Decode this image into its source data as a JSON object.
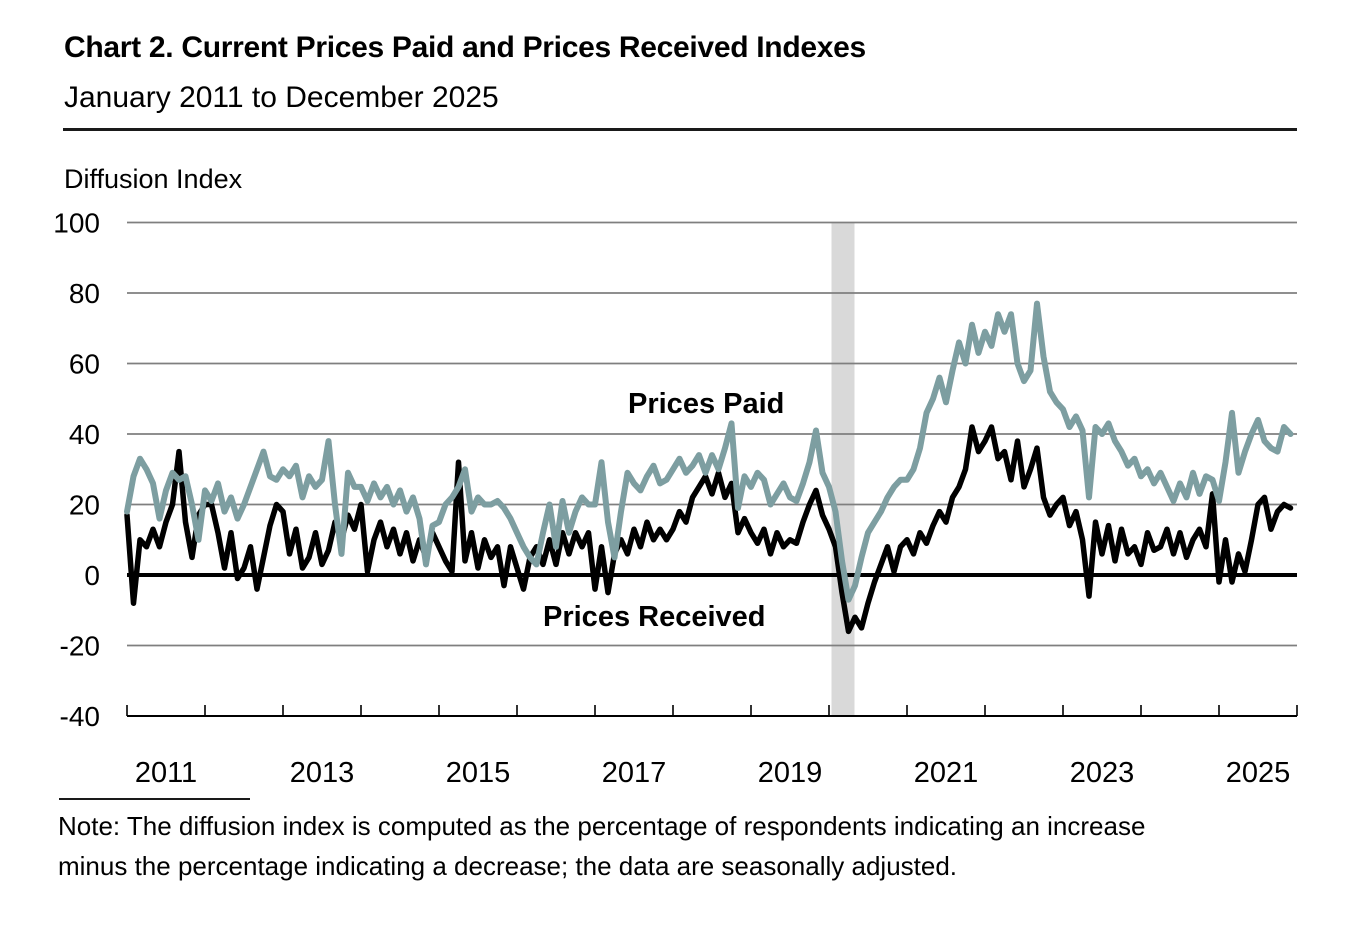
{
  "header": {
    "title": "Chart 2. Current Prices Paid and Prices Received Indexes",
    "subtitle": "January 2011 to December 2025"
  },
  "y_axis_title": "Diffusion Index",
  "legend": {
    "paid": "Prices Paid",
    "received": "Prices Received"
  },
  "note": {
    "line1": "Note: The diffusion index is computed as the percentage of respondents indicating an increase",
    "line2": "minus the percentage indicating a decrease; the data are seasonally adjusted."
  },
  "colors": {
    "prices_paid": "#7D9EA1",
    "prices_received": "#000000",
    "gridline": "#7F7F7F",
    "axis": "#000000",
    "recession_band": "#D9D9D9",
    "text": "#000000"
  },
  "chart_data": {
    "type": "line",
    "title": "Chart 2. Current Prices Paid and Prices Received Indexes",
    "date_range": "January 2011 to December 2025",
    "ylabel": "Diffusion Index",
    "frequency": "monthly",
    "start": "2011-01",
    "end": "2025-12",
    "ylim": [
      -40,
      100
    ],
    "y_ticks": [
      100,
      80,
      60,
      40,
      20,
      0,
      -20,
      -40
    ],
    "x_tick_years": [
      2011,
      2013,
      2015,
      2017,
      2019,
      2021,
      2023,
      2025
    ],
    "x_minor_tick_every_years": 1,
    "grid": true,
    "zero_line": true,
    "recession_band": {
      "start": "2020-02",
      "end": "2020-04"
    },
    "legend_position": "inline-annotations",
    "series": [
      {
        "name": "Prices Paid",
        "color": "#7D9EA1",
        "values": [
          18,
          28,
          33,
          30,
          26,
          16,
          24,
          29,
          27,
          28,
          20,
          10,
          24,
          21,
          26,
          18,
          22,
          16,
          20,
          25,
          30,
          35,
          28,
          27,
          30,
          28,
          31,
          22,
          28,
          25,
          27,
          38,
          20,
          6,
          29,
          25,
          25,
          21,
          26,
          22,
          25,
          20,
          24,
          18,
          22,
          16,
          3,
          14,
          15,
          20,
          22,
          25,
          30,
          18,
          22,
          20,
          20,
          21,
          19,
          16,
          12,
          8,
          5,
          3,
          12,
          20,
          8,
          21,
          12,
          18,
          22,
          20,
          20,
          32,
          15,
          5,
          18,
          29,
          26,
          24,
          28,
          31,
          26,
          27,
          30,
          33,
          29,
          31,
          34,
          29,
          34,
          30,
          36,
          43,
          19,
          28,
          25,
          29,
          27,
          20,
          23,
          26,
          22,
          21,
          26,
          32,
          41,
          29,
          25,
          18,
          4,
          -7,
          -3,
          5,
          12,
          15,
          18,
          22,
          25,
          27,
          27,
          30,
          36,
          46,
          50,
          56,
          49,
          58,
          66,
          60,
          71,
          63,
          69,
          65,
          74,
          69,
          74,
          60,
          55,
          58,
          77,
          62,
          52,
          49,
          47,
          42,
          45,
          41,
          22,
          42,
          40,
          43,
          38,
          35,
          31,
          33,
          28,
          30,
          26,
          29,
          25,
          21,
          26,
          22,
          29,
          23,
          28,
          27,
          21,
          32,
          46,
          29,
          35,
          40,
          44,
          38,
          36,
          35,
          42,
          40
        ]
      },
      {
        "name": "Prices Received",
        "color": "#000000",
        "values": [
          17,
          -8,
          10,
          8,
          13,
          8,
          15,
          20,
          35,
          15,
          5,
          17,
          20,
          20,
          12,
          2,
          12,
          -1,
          2,
          8,
          -4,
          5,
          14,
          20,
          18,
          6,
          13,
          2,
          5,
          12,
          3,
          7,
          15,
          10,
          17,
          13,
          20,
          1,
          10,
          15,
          8,
          13,
          6,
          12,
          4,
          10,
          5,
          12,
          8,
          4,
          1,
          32,
          4,
          12,
          2,
          10,
          5,
          8,
          -3,
          8,
          2,
          -4,
          5,
          8,
          3,
          10,
          3,
          12,
          6,
          12,
          8,
          12,
          -4,
          8,
          -5,
          6,
          10,
          6,
          13,
          8,
          15,
          10,
          13,
          10,
          13,
          18,
          15,
          22,
          25,
          28,
          23,
          29,
          22,
          26,
          12,
          16,
          12,
          9,
          13,
          6,
          12,
          8,
          10,
          9,
          15,
          20,
          24,
          17,
          13,
          8,
          -5,
          -16,
          -12,
          -15,
          -8,
          -2,
          3,
          8,
          1,
          8,
          10,
          6,
          12,
          9,
          14,
          18,
          15,
          22,
          25,
          30,
          42,
          35,
          38,
          42,
          33,
          35,
          27,
          38,
          25,
          30,
          36,
          22,
          17,
          20,
          22,
          14,
          18,
          10,
          -6,
          15,
          6,
          14,
          4,
          13,
          6,
          8,
          3,
          12,
          7,
          8,
          13,
          6,
          12,
          5,
          10,
          13,
          8,
          23,
          -2,
          10,
          -2,
          6,
          1,
          10,
          20,
          22,
          13,
          18,
          20,
          19
        ]
      }
    ]
  }
}
